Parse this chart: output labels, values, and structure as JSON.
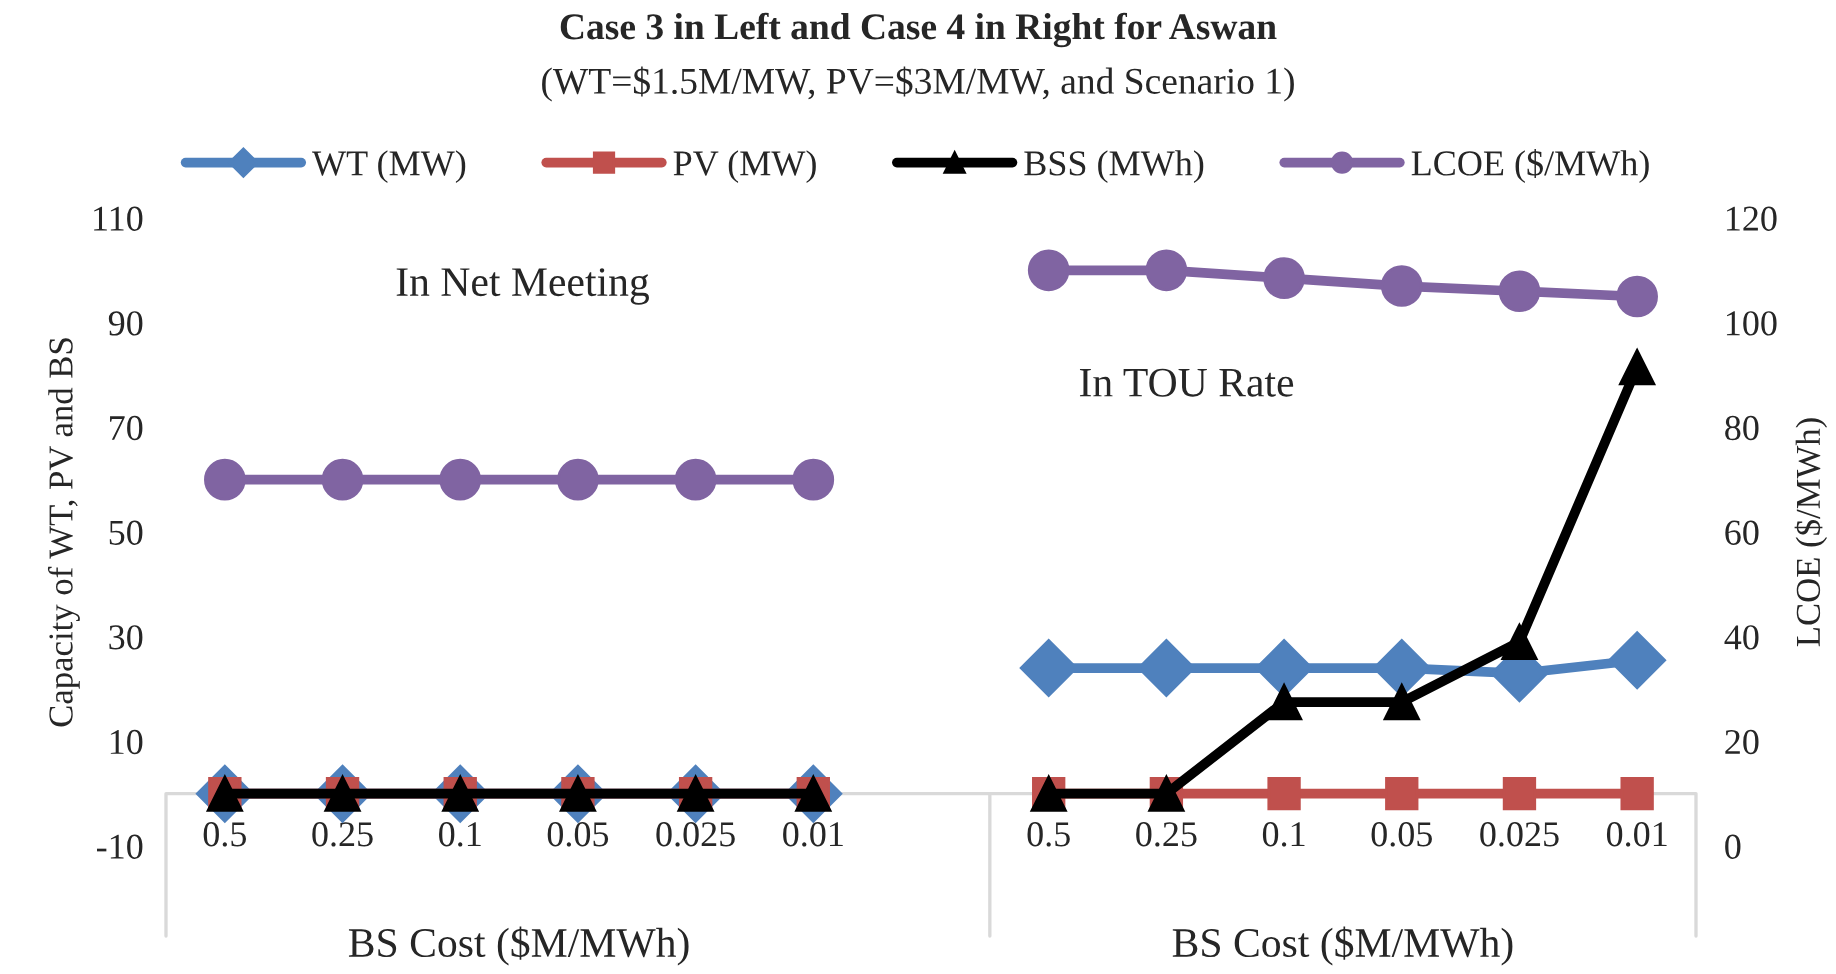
{
  "chart_data": {
    "type": "line",
    "title": "Case 3 in Left and Case 4 in Right for Aswan",
    "subtitle": "(WT=$1.5M/MW, PV=$3M/MW, and Scenario 1)",
    "ylabel": "Capacity of WT, PV and BS",
    "y2label": "LCOE ($/MWh)",
    "categories": [
      "0.5",
      "0.25",
      "0.1",
      "0.05",
      "0.025",
      "0.01",
      null,
      "0.5",
      "0.25",
      "0.1",
      "0.05",
      "0.025",
      "0.01"
    ],
    "series": [
      {
        "name": "WT (MW)",
        "color": "#4f81bd",
        "marker": "diamond",
        "values": [
          0,
          0,
          0,
          0,
          0,
          0,
          null,
          24,
          24,
          24,
          24,
          23,
          25.5
        ]
      },
      {
        "name": "PV (MW)",
        "color": "#c0504d",
        "marker": "square",
        "values": [
          0,
          0,
          0,
          0,
          0,
          0,
          null,
          0,
          0,
          0,
          0,
          0,
          0
        ]
      },
      {
        "name": "BSS (MWh)",
        "color": "#000000",
        "marker": "triangle",
        "values": [
          0,
          0,
          0,
          0,
          0,
          0,
          null,
          0,
          0,
          17.5,
          17.5,
          29,
          81.5
        ]
      },
      {
        "name": "LCOE ($/MWh)",
        "color": "#8064a2",
        "marker": "circle",
        "axis": "y2",
        "values": [
          70,
          70,
          70,
          70,
          70,
          70,
          null,
          110,
          110,
          108.5,
          107,
          106,
          105
        ]
      }
    ],
    "ylim": [
      -10,
      110
    ],
    "yticks": [
      -10,
      10,
      30,
      50,
      70,
      90,
      110
    ],
    "y2lim": [
      0,
      120
    ],
    "y2ticks": [
      0,
      20,
      40,
      60,
      80,
      100,
      120
    ],
    "legend": "top",
    "line_style": "solid",
    "annotations": [
      "In Net Meeting",
      "In TOU Rate",
      "BS Cost ($M/MWh)",
      "BS Cost ($M/MWh)"
    ]
  }
}
